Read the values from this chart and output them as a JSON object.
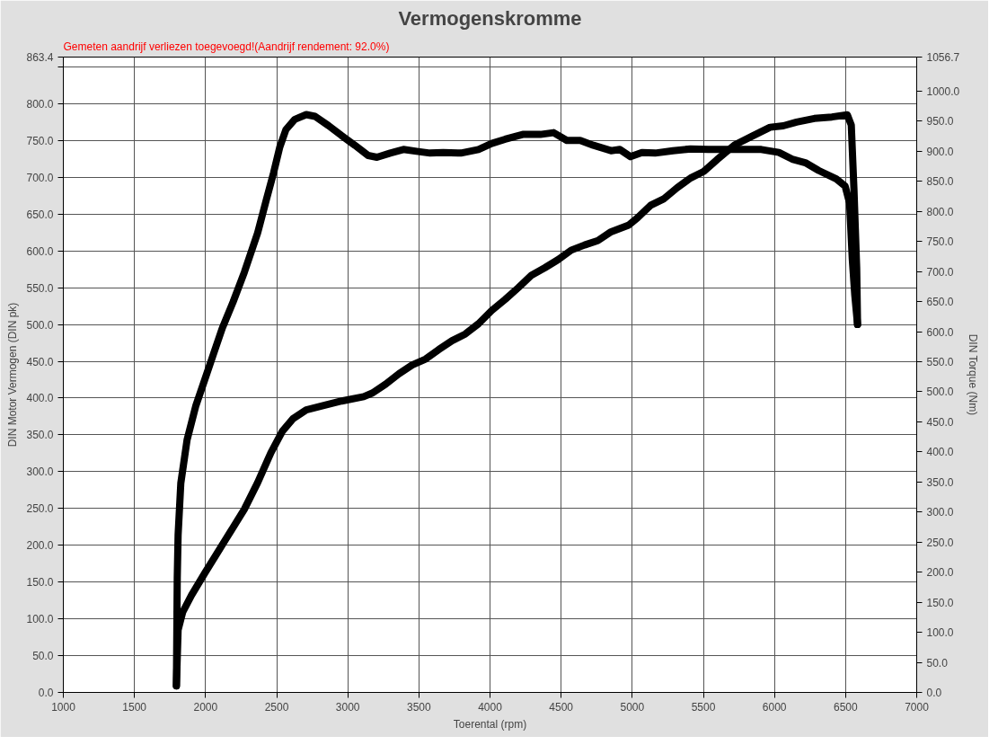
{
  "chart_data": {
    "type": "line",
    "title": "Vermogenskromme",
    "xlabel": "Toerental (rpm)",
    "ylabel": "DIN Motor Vermogen (DIN pk)",
    "y2label": "DIN Torque (Nm)",
    "annotations": [
      "Gemeten aandrijf verliezen toegevoegd!(Aandrijf rendement: 92.0%)"
    ],
    "xlim": [
      1000,
      7000
    ],
    "xticks": [
      1000,
      1500,
      2000,
      2500,
      3000,
      3500,
      4000,
      4500,
      5000,
      5500,
      6000,
      6500,
      7000
    ],
    "ylim": [
      0,
      863.4
    ],
    "yticks": [
      {
        "value": 0,
        "label": "0.0"
      },
      {
        "value": 50,
        "label": "50.0"
      },
      {
        "value": 100,
        "label": "100.0"
      },
      {
        "value": 150,
        "label": "150.0"
      },
      {
        "value": 200,
        "label": "200.0"
      },
      {
        "value": 250,
        "label": "250.0"
      },
      {
        "value": 300,
        "label": "300.0"
      },
      {
        "value": 350,
        "label": "350.0"
      },
      {
        "value": 400,
        "label": "400.0"
      },
      {
        "value": 450,
        "label": "450.0"
      },
      {
        "value": 500,
        "label": "500.0"
      },
      {
        "value": 550,
        "label": "550.0"
      },
      {
        "value": 600,
        "label": "600.0"
      },
      {
        "value": 650,
        "label": "650.0"
      },
      {
        "value": 700,
        "label": "700.0"
      },
      {
        "value": 750,
        "label": "750.0"
      },
      {
        "value": 800,
        "label": "800.0"
      },
      {
        "value": 850,
        "label": null
      },
      {
        "value": 863.4,
        "label": "863.4"
      }
    ],
    "y2lim": [
      0,
      1056.7
    ],
    "y2ticks": [
      {
        "value": 0,
        "label": "0.0"
      },
      {
        "value": 50,
        "label": "50.0"
      },
      {
        "value": 100,
        "label": "100.0"
      },
      {
        "value": 150,
        "label": "150.0"
      },
      {
        "value": 200,
        "label": "200.0"
      },
      {
        "value": 250,
        "label": "250.0"
      },
      {
        "value": 300,
        "label": "300.0"
      },
      {
        "value": 350,
        "label": "350.0"
      },
      {
        "value": 400,
        "label": "400.0"
      },
      {
        "value": 450,
        "label": "450.0"
      },
      {
        "value": 500,
        "label": "500.0"
      },
      {
        "value": 550,
        "label": "550.0"
      },
      {
        "value": 600,
        "label": "600.0"
      },
      {
        "value": 650,
        "label": "650.0"
      },
      {
        "value": 700,
        "label": "700.0"
      },
      {
        "value": 750,
        "label": "750.0"
      },
      {
        "value": 800,
        "label": "800.0"
      },
      {
        "value": 850,
        "label": "850.0"
      },
      {
        "value": 900,
        "label": "900.0"
      },
      {
        "value": 950,
        "label": "950.0"
      },
      {
        "value": 1000,
        "label": "1000.0"
      },
      {
        "value": 1056.7,
        "label": "1056.7"
      }
    ],
    "grid": true,
    "series": [
      {
        "color": "#000000",
        "x": [
          1795,
          1807,
          1839,
          1901,
          1994,
          2087,
          2180,
          2273,
          2366,
          2460,
          2540,
          2615,
          2708,
          2832,
          2957,
          3112,
          3174,
          3267,
          3360,
          3453,
          3547,
          3640,
          3733,
          3826,
          3919,
          4012,
          4106,
          4199,
          4292,
          4385,
          4478,
          4571,
          4665,
          4758,
          4851,
          4975,
          5037,
          5130,
          5224,
          5317,
          5410,
          5503,
          5596,
          5720,
          5845,
          5969,
          6062,
          6155,
          6280,
          6404,
          6512,
          6540,
          6559,
          6578,
          6584
        ],
        "values": [
          9,
          85,
          109,
          132,
          162,
          191,
          220,
          249,
          285,
          326,
          355,
          372,
          384,
          390,
          396,
          402,
          407,
          419,
          433,
          445,
          453,
          466,
          478,
          487,
          501,
          519,
          534,
          550,
          567,
          577,
          588,
          601,
          608,
          614,
          626,
          635,
          645,
          662,
          671,
          686,
          699,
          708,
          724,
          744,
          756,
          768,
          770,
          775,
          780,
          782,
          785,
          771,
          683,
          577,
          500
        ]
      },
      {
        "color": "#000000",
        "axis": "y2",
        "x": [
          1795,
          1801,
          1807,
          1826,
          1870,
          1932,
          1994,
          2056,
          2118,
          2193,
          2273,
          2366,
          2429,
          2478,
          2522,
          2565,
          2627,
          2708,
          2770,
          2863,
          2957,
          3050,
          3143,
          3205,
          3298,
          3391,
          3484,
          3578,
          3671,
          3795,
          3919,
          4012,
          4106,
          4230,
          4354,
          4447,
          4540,
          4634,
          4727,
          4851,
          4913,
          4988,
          5068,
          5161,
          5286,
          5410,
          5534,
          5720,
          5907,
          6031,
          6124,
          6217,
          6311,
          6435,
          6497,
          6528,
          6547,
          6565,
          6584
        ],
        "values": [
          11,
          191,
          262,
          348,
          420,
          477,
          520,
          563,
          606,
          649,
          699,
          764,
          821,
          864,
          907,
          936,
          953,
          961,
          958,
          943,
          926,
          910,
          893,
          890,
          897,
          903,
          900,
          897,
          898,
          897,
          903,
          913,
          920,
          928,
          928,
          931,
          918,
          918,
          910,
          901,
          903,
          891,
          898,
          897,
          901,
          904,
          903,
          903,
          903,
          898,
          887,
          881,
          868,
          854,
          842,
          814,
          721,
          660,
          612
        ]
      }
    ]
  }
}
